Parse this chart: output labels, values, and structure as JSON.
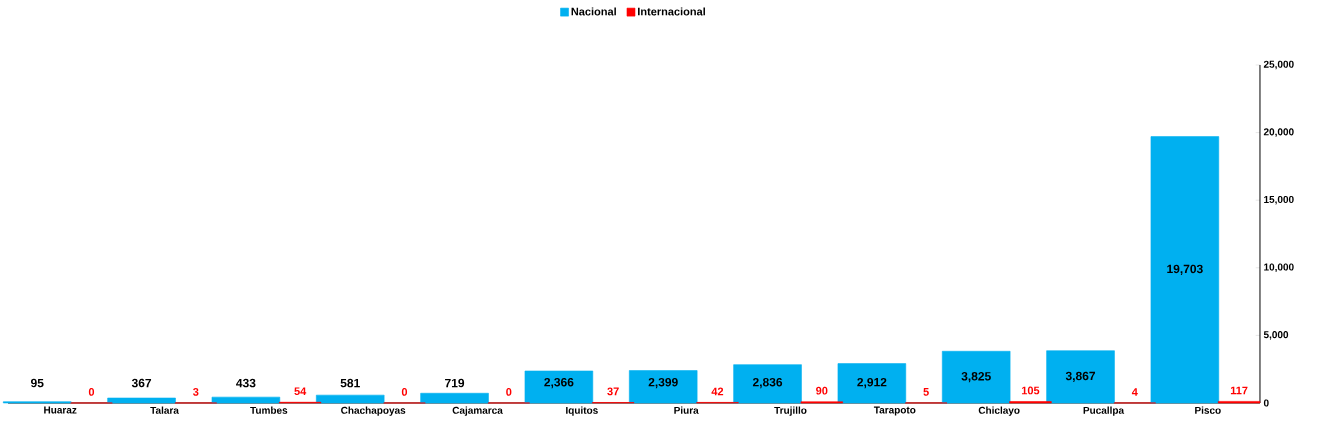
{
  "chart_data": {
    "type": "bar",
    "categories": [
      "Huaraz",
      "Talara",
      "Tumbes",
      "Chachapoyas",
      "Cajamarca",
      "Iquitos",
      "Piura",
      "Trujillo",
      "Tarapoto",
      "Chiclayo",
      "Pucallpa",
      "Pisco"
    ],
    "series": [
      {
        "name": "Nacional",
        "color": "#00b0f0",
        "values": [
          95,
          367,
          433,
          581,
          719,
          2366,
          2399,
          2836,
          2912,
          3825,
          3867,
          19703
        ],
        "value_labels": [
          "95",
          "367",
          "433",
          "581",
          "719",
          "2,366",
          "2,399",
          "2,836",
          "2,912",
          "3,825",
          "3,867",
          "19,703"
        ]
      },
      {
        "name": "Internacional",
        "color": "#ff0000",
        "values": [
          0,
          3,
          54,
          0,
          0,
          37,
          42,
          90,
          5,
          105,
          4,
          117
        ],
        "value_labels": [
          "0",
          "3",
          "54",
          "0",
          "0",
          "37",
          "42",
          "90",
          "5",
          "105",
          "4",
          "117"
        ]
      }
    ],
    "ylim": [
      0,
      25000
    ],
    "yticks": [
      0,
      {
        "value": 5000,
        "label": "5,000"
      },
      {
        "value": 10000,
        "label": "10,000"
      },
      {
        "value": 15000,
        "label": "15,000"
      },
      {
        "value": 20000,
        "label": "20,000"
      },
      {
        "value": 25000,
        "label": "25,000"
      }
    ],
    "legend": "top",
    "grid": false
  }
}
